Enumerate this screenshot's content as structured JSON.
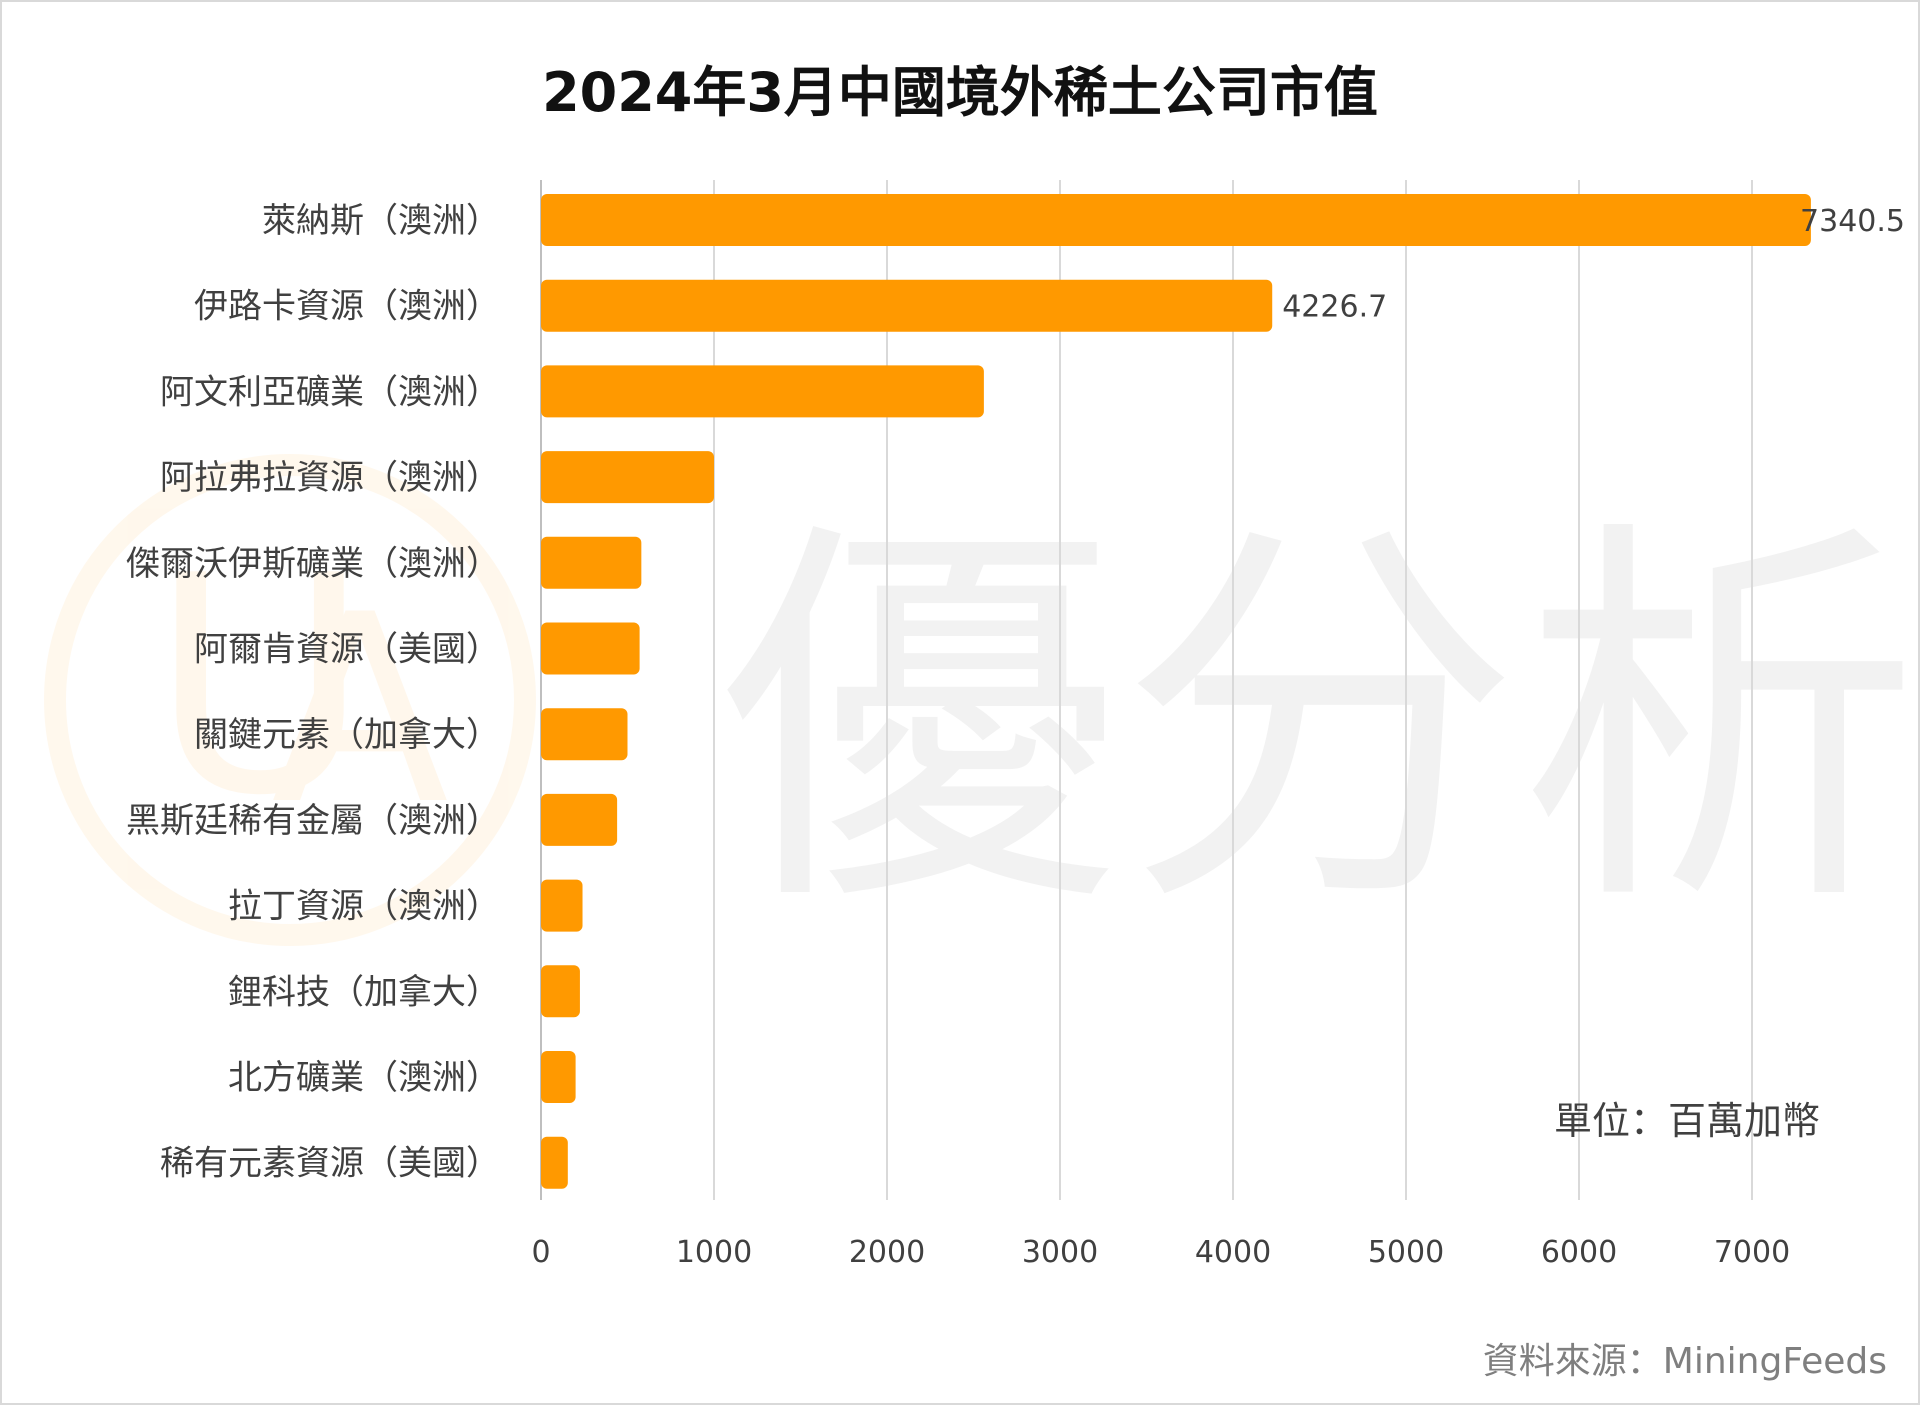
{
  "chart_data": {
    "type": "bar",
    "orientation": "horizontal",
    "title": "2024年3月中國境外稀土公司市值",
    "unit_note": "單位：百萬加幣",
    "source_note": "資料來源：MiningFeeds",
    "watermark": "優分析",
    "categories": [
      "萊納斯（澳洲）",
      "伊路卡資源（澳洲）",
      "阿文利亞礦業（澳洲）",
      "阿拉弗拉資源（澳洲）",
      "傑爾沃伊斯礦業（澳洲）",
      "阿爾肯資源（美國）",
      "關鍵元素（加拿大）",
      "黑斯廷稀有金屬（澳洲）",
      "拉丁資源（澳洲）",
      "鋰科技（加拿大）",
      "北方礦業（澳洲）",
      "稀有元素資源（美國）"
    ],
    "values": [
      7340.5,
      4226.7,
      2560,
      1000,
      580,
      570,
      500,
      440,
      240,
      225,
      200,
      155
    ],
    "data_labels": [
      "7340.5",
      "4226.7",
      "",
      "",
      "",
      "",
      "",
      "",
      "",
      "",
      "",
      ""
    ],
    "xlim": [
      0,
      7000
    ],
    "xticks": [
      "0",
      "1000",
      "2000",
      "3000",
      "4000",
      "5000",
      "6000",
      "7000"
    ],
    "bar_color": "#ff9900",
    "grid_color": "#d9d9d9",
    "grid": true
  }
}
